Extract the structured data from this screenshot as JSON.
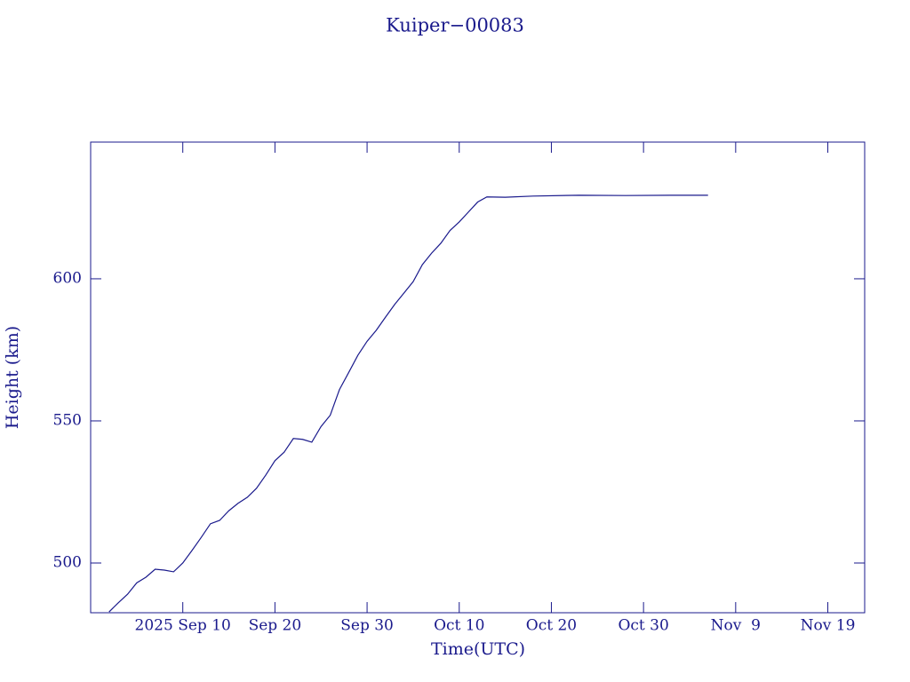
{
  "chart_data": {
    "type": "line",
    "title": "Kuiper−00083",
    "x_label": "Time(UTC)",
    "y_label": "Height (km)",
    "xlim": [
      "2025-08-31",
      "2025-11-23"
    ],
    "xticks": [
      {
        "value": "2025-09-10",
        "label": "2025 Sep 10"
      },
      {
        "value": "2025-09-20",
        "label": "Sep 20"
      },
      {
        "value": "2025-09-30",
        "label": "Sep 30"
      },
      {
        "value": "2025-10-10",
        "label": "Oct 10"
      },
      {
        "value": "2025-10-20",
        "label": "Oct 20"
      },
      {
        "value": "2025-10-30",
        "label": "Oct 30"
      },
      {
        "value": "2025-11-09",
        "label": "Nov  9"
      },
      {
        "value": "2025-11-19",
        "label": "Nov 19"
      }
    ],
    "ylim": [
      482.5,
      648.1
    ],
    "yticks": [
      500,
      550,
      600
    ],
    "color": "#1a1a8c",
    "x": [
      "2025-09-02",
      "2025-09-03",
      "2025-09-04",
      "2025-09-05",
      "2025-09-06",
      "2025-09-07",
      "2025-09-08",
      "2025-09-09",
      "2025-09-10",
      "2025-09-11",
      "2025-09-12",
      "2025-09-13",
      "2025-09-14",
      "2025-09-15",
      "2025-09-16",
      "2025-09-17",
      "2025-09-18",
      "2025-09-19",
      "2025-09-20",
      "2025-09-21",
      "2025-09-22",
      "2025-09-23",
      "2025-09-24",
      "2025-09-25",
      "2025-09-26",
      "2025-09-27",
      "2025-09-28",
      "2025-09-29",
      "2025-09-30",
      "2025-10-01",
      "2025-10-02",
      "2025-10-03",
      "2025-10-04",
      "2025-10-05",
      "2025-10-06",
      "2025-10-07",
      "2025-10-08",
      "2025-10-09",
      "2025-10-10",
      "2025-10-11",
      "2025-10-12",
      "2025-10-13",
      "2025-10-15",
      "2025-10-18",
      "2025-10-23",
      "2025-10-28",
      "2025-11-02",
      "2025-11-06"
    ],
    "values": [
      482.8,
      486,
      489,
      493,
      495,
      497.8,
      497.5,
      496.9,
      500,
      504.4,
      509,
      513.8,
      515,
      518.4,
      521,
      523.1,
      526.3,
      530.9,
      536,
      539,
      543.8,
      543.5,
      542.5,
      548,
      552,
      561,
      567,
      573.1,
      578,
      581.9,
      586.5,
      591,
      595,
      599,
      605,
      609,
      612.5,
      617,
      620,
      623.5,
      627,
      628.8,
      628.7,
      629.1,
      629.4,
      629.3,
      629.4,
      629.4
    ]
  }
}
